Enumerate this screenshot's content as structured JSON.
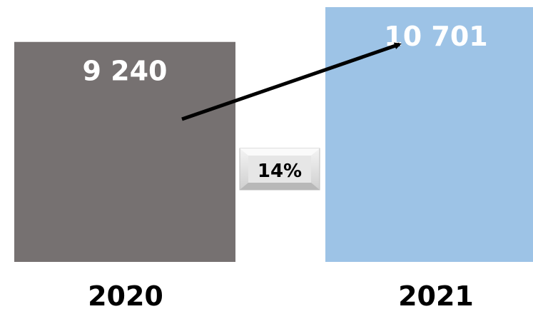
{
  "chart_data": {
    "type": "bar",
    "categories": [
      "2020",
      "2021"
    ],
    "values": [
      9240,
      10701
    ],
    "value_labels": [
      "9 240",
      "10 701"
    ],
    "ylim": [
      0,
      10701
    ],
    "grid": false,
    "colors": [
      "#767171",
      "#9DC3E6"
    ],
    "change_label": "14%",
    "change_arrow": true
  }
}
